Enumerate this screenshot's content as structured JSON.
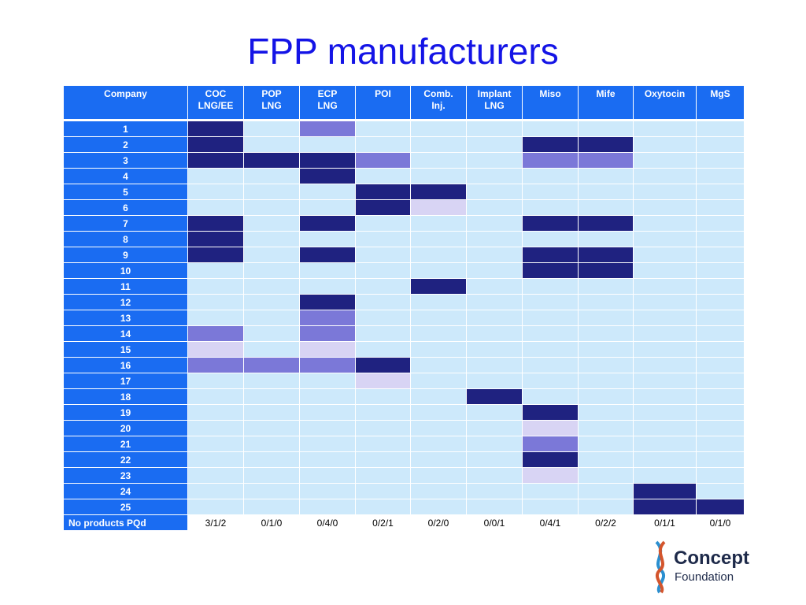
{
  "title": "FPP manufacturers",
  "table": {
    "header": [
      "Company",
      "COC\nLNG/EE",
      "POP\nLNG",
      "ECP\nLNG",
      "POI",
      "Comb.\nInj.",
      "Implant\nLNG",
      "Miso",
      "Mife",
      "Oxytocin",
      "MgS"
    ],
    "rows": [
      {
        "label": "1",
        "colors": [
          "#1f2280",
          "#cde9fb",
          "#7b78d8",
          "#cde9fb",
          "#cde9fb",
          "#cde9fb",
          "#cde9fb",
          "#cde9fb",
          "#cde9fb",
          "#cde9fb"
        ]
      },
      {
        "label": "2",
        "colors": [
          "#1f2280",
          "#cde9fb",
          "#cde9fb",
          "#cde9fb",
          "#cde9fb",
          "#cde9fb",
          "#1f2280",
          "#1f2280",
          "#cde9fb",
          "#cde9fb"
        ]
      },
      {
        "label": "3",
        "colors": [
          "#1f2280",
          "#1f2280",
          "#1f2280",
          "#7b78d8",
          "#cde9fb",
          "#cde9fb",
          "#7b78d8",
          "#7b78d8",
          "#cde9fb",
          "#cde9fb"
        ]
      },
      {
        "label": "4",
        "colors": [
          "#cde9fb",
          "#cde9fb",
          "#1f2280",
          "#cde9fb",
          "#cde9fb",
          "#cde9fb",
          "#cde9fb",
          "#cde9fb",
          "#cde9fb",
          "#cde9fb"
        ]
      },
      {
        "label": "5",
        "colors": [
          "#cde9fb",
          "#cde9fb",
          "#cde9fb",
          "#1f2280",
          "#1f2280",
          "#cde9fb",
          "#cde9fb",
          "#cde9fb",
          "#cde9fb",
          "#cde9fb"
        ]
      },
      {
        "label": "6",
        "colors": [
          "#cde9fb",
          "#cde9fb",
          "#cde9fb",
          "#1f2280",
          "#d8d4f4",
          "#cde9fb",
          "#cde9fb",
          "#cde9fb",
          "#cde9fb",
          "#cde9fb"
        ]
      },
      {
        "label": "7",
        "colors": [
          "#1f2280",
          "#cde9fb",
          "#1f2280",
          "#cde9fb",
          "#cde9fb",
          "#cde9fb",
          "#1f2280",
          "#1f2280",
          "#cde9fb",
          "#cde9fb"
        ]
      },
      {
        "label": "8",
        "colors": [
          "#1f2280",
          "#cde9fb",
          "#cde9fb",
          "#cde9fb",
          "#cde9fb",
          "#cde9fb",
          "#cde9fb",
          "#cde9fb",
          "#cde9fb",
          "#cde9fb"
        ]
      },
      {
        "label": "9",
        "colors": [
          "#1f2280",
          "#cde9fb",
          "#1f2280",
          "#cde9fb",
          "#cde9fb",
          "#cde9fb",
          "#1f2280",
          "#1f2280",
          "#cde9fb",
          "#cde9fb"
        ]
      },
      {
        "label": "10",
        "colors": [
          "#cde9fb",
          "#cde9fb",
          "#cde9fb",
          "#cde9fb",
          "#cde9fb",
          "#cde9fb",
          "#1f2280",
          "#1f2280",
          "#cde9fb",
          "#cde9fb"
        ]
      },
      {
        "label": "11",
        "colors": [
          "#cde9fb",
          "#cde9fb",
          "#cde9fb",
          "#cde9fb",
          "#1f2280",
          "#cde9fb",
          "#cde9fb",
          "#cde9fb",
          "#cde9fb",
          "#cde9fb"
        ]
      },
      {
        "label": "12",
        "colors": [
          "#cde9fb",
          "#cde9fb",
          "#1f2280",
          "#cde9fb",
          "#cde9fb",
          "#cde9fb",
          "#cde9fb",
          "#cde9fb",
          "#cde9fb",
          "#cde9fb"
        ]
      },
      {
        "label": "13",
        "colors": [
          "#cde9fb",
          "#cde9fb",
          "#7b78d8",
          "#cde9fb",
          "#cde9fb",
          "#cde9fb",
          "#cde9fb",
          "#cde9fb",
          "#cde9fb",
          "#cde9fb"
        ]
      },
      {
        "label": "14",
        "colors": [
          "#7b78d8",
          "#cde9fb",
          "#7b78d8",
          "#cde9fb",
          "#cde9fb",
          "#cde9fb",
          "#cde9fb",
          "#cde9fb",
          "#cde9fb",
          "#cde9fb"
        ]
      },
      {
        "label": "15",
        "colors": [
          "#d8d4f4",
          "#cde9fb",
          "#d8d4f4",
          "#cde9fb",
          "#cde9fb",
          "#cde9fb",
          "#cde9fb",
          "#cde9fb",
          "#cde9fb",
          "#cde9fb"
        ]
      },
      {
        "label": "16",
        "colors": [
          "#7b78d8",
          "#7b78d8",
          "#7b78d8",
          "#1f2280",
          "#cde9fb",
          "#cde9fb",
          "#cde9fb",
          "#cde9fb",
          "#cde9fb",
          "#cde9fb"
        ]
      },
      {
        "label": "17",
        "colors": [
          "#cde9fb",
          "#cde9fb",
          "#cde9fb",
          "#d8d4f4",
          "#cde9fb",
          "#cde9fb",
          "#cde9fb",
          "#cde9fb",
          "#cde9fb",
          "#cde9fb"
        ]
      },
      {
        "label": "18",
        "colors": [
          "#cde9fb",
          "#cde9fb",
          "#cde9fb",
          "#cde9fb",
          "#cde9fb",
          "#1f2280",
          "#cde9fb",
          "#cde9fb",
          "#cde9fb",
          "#cde9fb"
        ]
      },
      {
        "label": "19",
        "colors": [
          "#cde9fb",
          "#cde9fb",
          "#cde9fb",
          "#cde9fb",
          "#cde9fb",
          "#cde9fb",
          "#1f2280",
          "#cde9fb",
          "#cde9fb",
          "#cde9fb"
        ]
      },
      {
        "label": "20",
        "colors": [
          "#cde9fb",
          "#cde9fb",
          "#cde9fb",
          "#cde9fb",
          "#cde9fb",
          "#cde9fb",
          "#d8d4f4",
          "#cde9fb",
          "#cde9fb",
          "#cde9fb"
        ]
      },
      {
        "label": "21",
        "colors": [
          "#cde9fb",
          "#cde9fb",
          "#cde9fb",
          "#cde9fb",
          "#cde9fb",
          "#cde9fb",
          "#7b78d8",
          "#cde9fb",
          "#cde9fb",
          "#cde9fb"
        ]
      },
      {
        "label": "22",
        "colors": [
          "#cde9fb",
          "#cde9fb",
          "#cde9fb",
          "#cde9fb",
          "#cde9fb",
          "#cde9fb",
          "#1f2280",
          "#cde9fb",
          "#cde9fb",
          "#cde9fb"
        ]
      },
      {
        "label": "23",
        "colors": [
          "#cde9fb",
          "#cde9fb",
          "#cde9fb",
          "#cde9fb",
          "#cde9fb",
          "#cde9fb",
          "#d8d4f4",
          "#cde9fb",
          "#cde9fb",
          "#cde9fb"
        ]
      },
      {
        "label": "24",
        "colors": [
          "#cde9fb",
          "#cde9fb",
          "#cde9fb",
          "#cde9fb",
          "#cde9fb",
          "#cde9fb",
          "#cde9fb",
          "#cde9fb",
          "#1f2280",
          "#cde9fb"
        ]
      },
      {
        "label": "25",
        "colors": [
          "#cde9fb",
          "#cde9fb",
          "#cde9fb",
          "#cde9fb",
          "#cde9fb",
          "#cde9fb",
          "#cde9fb",
          "#cde9fb",
          "#1f2280",
          "#1f2280"
        ]
      }
    ],
    "footer": [
      "No products PQd",
      "3/1/2",
      "0/1/0",
      "0/4/0",
      "0/2/1",
      "0/2/0",
      "0/0/1",
      "0/4/1",
      "0/2/2",
      "0/1/1",
      "0/1/0"
    ]
  },
  "logo": {
    "name": "Concept",
    "sub": "Foundation"
  }
}
